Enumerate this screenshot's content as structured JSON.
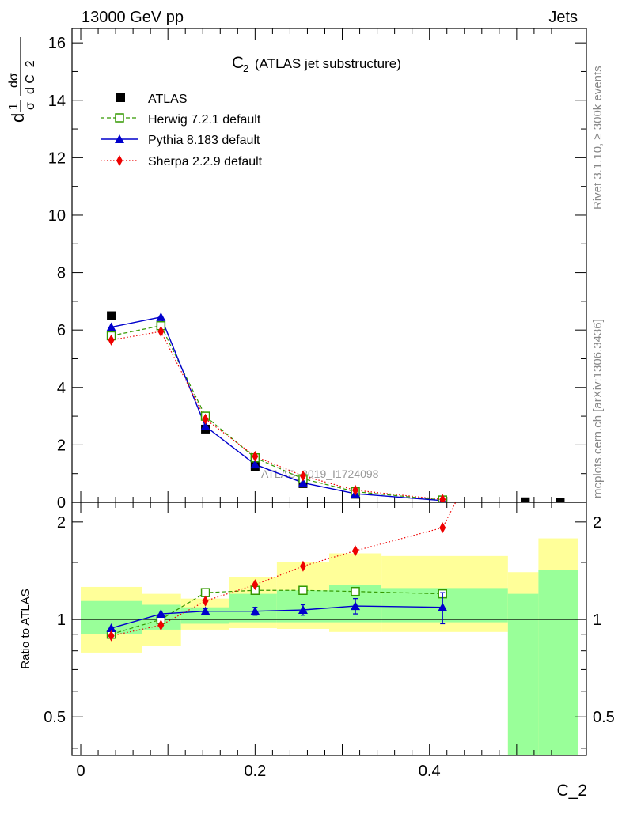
{
  "header": {
    "energy_label": "13000 GeV pp",
    "process_label": "Jets",
    "side_label_top": "Rivet 3.1.10, ≥ 300k events",
    "side_label_bottom": "mcplots.cern.ch [arXiv:1306.3436]",
    "watermark": "ATLAS_2019_I1724098"
  },
  "colors": {
    "atlas": "#000000",
    "herwig": "#339900",
    "pythia": "#0000cc",
    "sherpa": "#ee0000",
    "band_inner": "#99ff99",
    "band_outer": "#ffff99"
  },
  "chart_data": [
    {
      "type": "scatter",
      "title": "C₂ (ATLAS jet substructure)",
      "title_main": "C",
      "title_sub": "2",
      "title_rest": "(ATLAS jet substructure)",
      "ylabel_num": "dσ",
      "ylabel_den": "d C_2",
      "ylabel_pre_num": "1",
      "ylabel_pre_den": "σ",
      "ylabel_d": "d",
      "xlim": [
        -0.01,
        0.58
      ],
      "ylim": [
        0,
        16.5
      ],
      "yticks": [
        0,
        2,
        4,
        6,
        8,
        10,
        12,
        14,
        16
      ],
      "ytick_labels": [
        "0",
        "2",
        "4",
        "6",
        "8",
        "10",
        "12",
        "14",
        "16"
      ],
      "legend": [
        "ATLAS",
        "Herwig 7.2.1 default",
        "Pythia 8.183 default",
        "Sherpa 2.2.9 default"
      ],
      "series": [
        {
          "name": "ATLAS",
          "x": [
            0.035,
            0.092,
            0.143,
            0.2,
            0.255,
            0.315,
            0.415,
            0.51,
            0.55
          ],
          "y": [
            6.5,
            6.15,
            2.55,
            1.25,
            0.65,
            0.28,
            0.06,
            0.02,
            0.01
          ]
        },
        {
          "name": "Herwig 7.2.1 default",
          "x": [
            0.035,
            0.092,
            0.143,
            0.2,
            0.255,
            0.315,
            0.415
          ],
          "y": [
            5.8,
            6.15,
            3.0,
            1.55,
            0.82,
            0.37,
            0.08
          ]
        },
        {
          "name": "Pythia 8.183 default",
          "x": [
            0.035,
            0.092,
            0.143,
            0.2,
            0.255,
            0.315,
            0.415
          ],
          "y": [
            6.1,
            6.45,
            2.65,
            1.32,
            0.68,
            0.3,
            0.06
          ]
        },
        {
          "name": "Sherpa 2.2.9 default",
          "x": [
            0.035,
            0.092,
            0.143,
            0.2,
            0.255,
            0.315,
            0.415
          ],
          "y": [
            5.65,
            5.95,
            2.9,
            1.6,
            0.92,
            0.42,
            0.1
          ]
        }
      ]
    },
    {
      "type": "scatter",
      "title": "",
      "ylabel": "Ratio to ATLAS",
      "xlabel": "C_2",
      "xlim": [
        -0.01,
        0.58
      ],
      "ylim": [
        0.38,
        2.3
      ],
      "yscale": "log",
      "xticks": [
        0,
        0.2,
        0.4
      ],
      "xtick_labels": [
        "0",
        "0.2",
        "0.4"
      ],
      "yticks": [
        0.5,
        1,
        2
      ],
      "ytick_labels": [
        "0.5",
        "1",
        "2"
      ],
      "bands": [
        {
          "x0": 0.0,
          "x1": 0.07,
          "inner": [
            0.9,
            1.14
          ],
          "outer": [
            0.79,
            1.26
          ]
        },
        {
          "x0": 0.07,
          "x1": 0.115,
          "inner": [
            0.93,
            1.11
          ],
          "outer": [
            0.83,
            1.2
          ]
        },
        {
          "x0": 0.115,
          "x1": 0.17,
          "inner": [
            0.97,
            1.09
          ],
          "outer": [
            0.93,
            1.16
          ]
        },
        {
          "x0": 0.17,
          "x1": 0.225,
          "inner": [
            0.98,
            1.2
          ],
          "outer": [
            0.94,
            1.35
          ]
        },
        {
          "x0": 0.225,
          "x1": 0.285,
          "inner": [
            0.98,
            1.23
          ],
          "outer": [
            0.935,
            1.5
          ]
        },
        {
          "x0": 0.285,
          "x1": 0.345,
          "inner": [
            0.98,
            1.28
          ],
          "outer": [
            0.915,
            1.6
          ]
        },
        {
          "x0": 0.345,
          "x1": 0.49,
          "inner": [
            0.98,
            1.25
          ],
          "outer": [
            0.915,
            1.57
          ]
        },
        {
          "x0": 0.49,
          "x1": 0.525,
          "inner": [
            0.38,
            1.2
          ],
          "outer": [
            0.38,
            1.4
          ]
        },
        {
          "x0": 0.525,
          "x1": 0.57,
          "inner": [
            0.38,
            1.42
          ],
          "outer": [
            0.38,
            1.78
          ]
        }
      ],
      "series": [
        {
          "name": "Herwig 7.2.1 default",
          "x": [
            0.035,
            0.092,
            0.143,
            0.2,
            0.255,
            0.315,
            0.415
          ],
          "y": [
            0.9,
            1.0,
            1.21,
            1.23,
            1.23,
            1.22,
            1.2
          ],
          "err": [
            0.02,
            0.02,
            0.02,
            0.02,
            0.02,
            0.02,
            0.03
          ]
        },
        {
          "name": "Pythia 8.183 default",
          "x": [
            0.035,
            0.092,
            0.143,
            0.2,
            0.255,
            0.315,
            0.415
          ],
          "y": [
            0.94,
            1.04,
            1.06,
            1.06,
            1.07,
            1.1,
            1.09
          ],
          "err": [
            0.0,
            0.0,
            0.02,
            0.03,
            0.04,
            0.06,
            0.12
          ]
        },
        {
          "name": "Sherpa 2.2.9 default",
          "x": [
            0.035,
            0.092,
            0.143,
            0.2,
            0.255,
            0.315,
            0.415,
            0.43
          ],
          "y": [
            0.89,
            0.96,
            1.14,
            1.28,
            1.46,
            1.63,
            1.92,
            2.3
          ],
          "err": [
            0,
            0,
            0,
            0,
            0,
            0,
            0,
            0
          ]
        }
      ]
    }
  ]
}
